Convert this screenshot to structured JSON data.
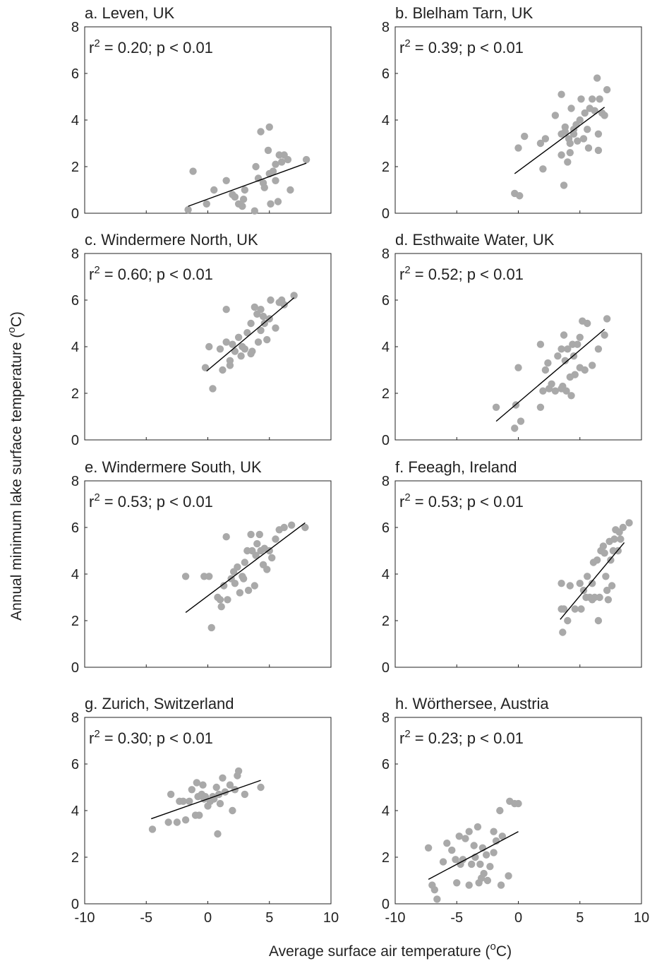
{
  "figure": {
    "xlabel": "Average surface air temperature",
    "xlabel_unit": "C",
    "xlabel_unit_sup": "o",
    "ylabel": "Annual minimum lake surface temperature",
    "ylabel_unit": "C",
    "ylabel_unit_sup": "o"
  },
  "chart_data": [
    {
      "type": "scatter",
      "title": "a. Leven, UK",
      "stat": {
        "r2": "0.20",
        "p": "p < 0.01"
      },
      "xlim": [
        -10,
        10
      ],
      "ylim": [
        0,
        8
      ],
      "xticks": [
        -10,
        -5,
        0,
        5,
        10
      ],
      "yticks": [
        0,
        2,
        4,
        6,
        8
      ],
      "points": [
        [
          -1.6,
          0.15
        ],
        [
          -1.2,
          1.8
        ],
        [
          -0.1,
          0.4
        ],
        [
          0.5,
          1.0
        ],
        [
          1.5,
          1.4
        ],
        [
          2.0,
          0.8
        ],
        [
          2.2,
          0.7
        ],
        [
          2.5,
          0.4
        ],
        [
          2.8,
          0.3
        ],
        [
          3.0,
          1.0
        ],
        [
          2.9,
          0.6
        ],
        [
          3.8,
          0.1
        ],
        [
          3.9,
          2.0
        ],
        [
          4.1,
          1.5
        ],
        [
          4.3,
          3.5
        ],
        [
          4.5,
          1.3
        ],
        [
          4.6,
          1.1
        ],
        [
          4.9,
          2.7
        ],
        [
          5.0,
          3.7
        ],
        [
          5.0,
          1.7
        ],
        [
          5.1,
          0.4
        ],
        [
          5.3,
          1.8
        ],
        [
          5.5,
          2.1
        ],
        [
          5.5,
          1.4
        ],
        [
          5.7,
          0.5
        ],
        [
          5.8,
          2.5
        ],
        [
          6.0,
          2.2
        ],
        [
          6.2,
          2.5
        ],
        [
          6.5,
          2.3
        ],
        [
          6.7,
          1.0
        ],
        [
          8.0,
          2.3
        ]
      ],
      "fit": [
        [
          -1.6,
          0.3
        ],
        [
          8.0,
          2.15
        ]
      ]
    },
    {
      "type": "scatter",
      "title": "b. Blelham Tarn, UK",
      "stat": {
        "r2": "0.39",
        "p": "p < 0.01"
      },
      "xlim": [
        -10,
        10
      ],
      "ylim": [
        0,
        8
      ],
      "xticks": [
        -10,
        -5,
        0,
        5,
        10
      ],
      "yticks": [
        0,
        2,
        4,
        6,
        8
      ],
      "points": [
        [
          -0.3,
          0.85
        ],
        [
          0.1,
          0.75
        ],
        [
          0.0,
          2.8
        ],
        [
          0.5,
          3.3
        ],
        [
          1.8,
          3.0
        ],
        [
          2.0,
          1.9
        ],
        [
          2.2,
          3.2
        ],
        [
          3.0,
          4.2
        ],
        [
          3.5,
          3.4
        ],
        [
          3.5,
          2.5
        ],
        [
          3.5,
          5.1
        ],
        [
          3.7,
          1.2
        ],
        [
          3.8,
          3.5
        ],
        [
          3.8,
          3.7
        ],
        [
          4.0,
          2.2
        ],
        [
          4.1,
          3.2
        ],
        [
          4.2,
          2.6
        ],
        [
          4.2,
          3.0
        ],
        [
          4.3,
          4.5
        ],
        [
          4.5,
          3.4
        ],
        [
          4.5,
          3.6
        ],
        [
          4.7,
          3.8
        ],
        [
          4.8,
          3.1
        ],
        [
          5.0,
          4.0
        ],
        [
          5.1,
          4.9
        ],
        [
          5.3,
          3.2
        ],
        [
          5.4,
          4.3
        ],
        [
          5.6,
          3.6
        ],
        [
          5.7,
          2.8
        ],
        [
          5.8,
          4.5
        ],
        [
          6.0,
          4.9
        ],
        [
          6.2,
          4.4
        ],
        [
          6.4,
          5.8
        ],
        [
          6.5,
          3.4
        ],
        [
          6.5,
          2.7
        ],
        [
          6.6,
          4.9
        ],
        [
          6.8,
          4.3
        ],
        [
          7.0,
          4.2
        ],
        [
          7.2,
          5.3
        ]
      ],
      "fit": [
        [
          -0.3,
          1.7
        ],
        [
          7.0,
          4.55
        ]
      ]
    },
    {
      "type": "scatter",
      "title": "c. Windermere North, UK",
      "stat": {
        "r2": "0.60",
        "p": "p < 0.01"
      },
      "xlim": [
        -10,
        10
      ],
      "ylim": [
        0,
        8
      ],
      "xticks": [
        -10,
        -5,
        0,
        5,
        10
      ],
      "yticks": [
        0,
        2,
        4,
        6,
        8
      ],
      "points": [
        [
          -0.2,
          3.1
        ],
        [
          0.1,
          4.0
        ],
        [
          0.4,
          2.2
        ],
        [
          1.0,
          3.9
        ],
        [
          1.2,
          3.0
        ],
        [
          1.5,
          5.6
        ],
        [
          1.5,
          4.2
        ],
        [
          1.8,
          3.2
        ],
        [
          1.8,
          3.4
        ],
        [
          2.0,
          4.1
        ],
        [
          2.2,
          3.8
        ],
        [
          2.5,
          4.4
        ],
        [
          2.7,
          3.6
        ],
        [
          2.8,
          4.0
        ],
        [
          3.0,
          3.9
        ],
        [
          3.2,
          4.6
        ],
        [
          3.5,
          3.7
        ],
        [
          3.5,
          5.0
        ],
        [
          3.6,
          3.8
        ],
        [
          3.8,
          5.7
        ],
        [
          4.0,
          5.4
        ],
        [
          4.1,
          4.2
        ],
        [
          4.3,
          4.7
        ],
        [
          4.3,
          5.6
        ],
        [
          4.5,
          5.3
        ],
        [
          4.6,
          5.0
        ],
        [
          4.8,
          4.3
        ],
        [
          5.0,
          5.2
        ],
        [
          5.1,
          6.0
        ],
        [
          5.5,
          4.8
        ],
        [
          5.8,
          5.9
        ],
        [
          6.0,
          6.0
        ],
        [
          6.2,
          5.8
        ],
        [
          7.0,
          6.2
        ]
      ],
      "fit": [
        [
          -0.1,
          2.95
        ],
        [
          7.0,
          6.1
        ]
      ]
    },
    {
      "type": "scatter",
      "title": "d. Esthwaite Water, UK",
      "stat": {
        "r2": "0.52",
        "p": "p < 0.01"
      },
      "xlim": [
        -10,
        10
      ],
      "ylim": [
        0,
        8
      ],
      "xticks": [
        -10,
        -5,
        0,
        5,
        10
      ],
      "yticks": [
        0,
        2,
        4,
        6,
        8
      ],
      "points": [
        [
          -1.8,
          1.4
        ],
        [
          -0.3,
          0.5
        ],
        [
          -0.2,
          1.5
        ],
        [
          0.0,
          3.1
        ],
        [
          0.2,
          0.8
        ],
        [
          1.8,
          1.4
        ],
        [
          1.8,
          4.1
        ],
        [
          2.0,
          2.1
        ],
        [
          2.2,
          3.0
        ],
        [
          2.4,
          3.3
        ],
        [
          2.5,
          2.2
        ],
        [
          2.7,
          2.4
        ],
        [
          3.0,
          2.1
        ],
        [
          3.2,
          3.6
        ],
        [
          3.5,
          2.2
        ],
        [
          3.5,
          3.9
        ],
        [
          3.6,
          2.3
        ],
        [
          3.7,
          4.5
        ],
        [
          3.8,
          3.4
        ],
        [
          3.9,
          2.1
        ],
        [
          4.0,
          3.9
        ],
        [
          4.2,
          2.7
        ],
        [
          4.3,
          1.9
        ],
        [
          4.4,
          4.1
        ],
        [
          4.5,
          3.6
        ],
        [
          4.6,
          2.8
        ],
        [
          4.8,
          4.1
        ],
        [
          5.0,
          4.4
        ],
        [
          5.0,
          3.1
        ],
        [
          5.2,
          5.1
        ],
        [
          5.4,
          3.0
        ],
        [
          5.6,
          5.0
        ],
        [
          6.0,
          3.2
        ],
        [
          6.5,
          3.9
        ],
        [
          7.0,
          4.5
        ],
        [
          7.2,
          5.2
        ]
      ],
      "fit": [
        [
          -1.8,
          0.8
        ],
        [
          7.0,
          4.75
        ]
      ]
    },
    {
      "type": "scatter",
      "title": "e. Windermere South, UK",
      "stat": {
        "r2": "0.53",
        "p": "p < 0.01"
      },
      "xlim": [
        -10,
        10
      ],
      "ylim": [
        0,
        8
      ],
      "xticks": [
        -10,
        -5,
        0,
        5,
        10
      ],
      "yticks": [
        0,
        2,
        4,
        6,
        8
      ],
      "points": [
        [
          -1.8,
          3.9
        ],
        [
          -0.3,
          3.9
        ],
        [
          0.1,
          3.9
        ],
        [
          0.3,
          1.7
        ],
        [
          0.8,
          3.0
        ],
        [
          1.0,
          2.9
        ],
        [
          1.1,
          2.6
        ],
        [
          1.3,
          3.5
        ],
        [
          1.5,
          5.6
        ],
        [
          1.6,
          2.9
        ],
        [
          1.9,
          3.8
        ],
        [
          2.1,
          4.1
        ],
        [
          2.2,
          3.6
        ],
        [
          2.4,
          4.3
        ],
        [
          2.6,
          3.2
        ],
        [
          2.8,
          3.9
        ],
        [
          2.9,
          3.8
        ],
        [
          3.0,
          4.5
        ],
        [
          3.2,
          5.0
        ],
        [
          3.3,
          3.3
        ],
        [
          3.5,
          5.7
        ],
        [
          3.6,
          5.0
        ],
        [
          3.8,
          3.5
        ],
        [
          3.9,
          4.8
        ],
        [
          4.0,
          5.3
        ],
        [
          4.2,
          5.7
        ],
        [
          4.3,
          5.0
        ],
        [
          4.5,
          4.4
        ],
        [
          4.6,
          5.1
        ],
        [
          4.8,
          4.2
        ],
        [
          5.0,
          5.0
        ],
        [
          5.2,
          4.7
        ],
        [
          5.5,
          5.5
        ],
        [
          5.8,
          5.9
        ],
        [
          6.2,
          6.0
        ],
        [
          6.8,
          6.1
        ],
        [
          7.9,
          6.0
        ]
      ],
      "fit": [
        [
          -1.8,
          2.35
        ],
        [
          7.9,
          6.2
        ]
      ]
    },
    {
      "type": "scatter",
      "title": "f. Feeagh, Ireland",
      "stat": {
        "r2": "0.53",
        "p": "p < 0.01"
      },
      "xlim": [
        -10,
        10
      ],
      "ylim": [
        0,
        8
      ],
      "xticks": [
        -10,
        -5,
        0,
        5,
        10
      ],
      "yticks": [
        0,
        2,
        4,
        6,
        8
      ],
      "points": [
        [
          3.5,
          3.6
        ],
        [
          3.5,
          2.5
        ],
        [
          3.6,
          1.5
        ],
        [
          3.7,
          2.5
        ],
        [
          4.0,
          2.0
        ],
        [
          4.2,
          3.5
        ],
        [
          4.6,
          2.5
        ],
        [
          5.0,
          3.6
        ],
        [
          5.1,
          2.5
        ],
        [
          5.3,
          3.3
        ],
        [
          5.5,
          3.0
        ],
        [
          5.6,
          3.9
        ],
        [
          5.8,
          3.0
        ],
        [
          6.0,
          2.9
        ],
        [
          6.0,
          3.6
        ],
        [
          6.1,
          4.5
        ],
        [
          6.2,
          3.0
        ],
        [
          6.4,
          4.6
        ],
        [
          6.5,
          2.0
        ],
        [
          6.6,
          3.0
        ],
        [
          6.7,
          5.0
        ],
        [
          6.9,
          5.2
        ],
        [
          7.0,
          4.9
        ],
        [
          7.1,
          3.9
        ],
        [
          7.2,
          3.3
        ],
        [
          7.3,
          2.9
        ],
        [
          7.4,
          5.4
        ],
        [
          7.5,
          4.6
        ],
        [
          7.6,
          3.5
        ],
        [
          7.7,
          5.0
        ],
        [
          7.8,
          5.5
        ],
        [
          7.9,
          5.9
        ],
        [
          8.1,
          5.0
        ],
        [
          8.2,
          5.8
        ],
        [
          8.3,
          5.5
        ],
        [
          8.5,
          6.0
        ],
        [
          9.0,
          6.2
        ]
      ],
      "fit": [
        [
          3.4,
          2.05
        ],
        [
          8.6,
          5.35
        ]
      ]
    },
    {
      "type": "scatter",
      "title": "g. Zurich, Switzerland",
      "stat": {
        "r2": "0.30",
        "p": "p < 0.01"
      },
      "xlim": [
        -10,
        10
      ],
      "ylim": [
        0,
        8
      ],
      "xticks": [
        -10,
        -5,
        0,
        5,
        10
      ],
      "yticks": [
        0,
        2,
        4,
        6,
        8
      ],
      "points": [
        [
          -4.5,
          3.2
        ],
        [
          -3.2,
          3.5
        ],
        [
          -3.0,
          4.7
        ],
        [
          -2.5,
          3.5
        ],
        [
          -2.3,
          4.4
        ],
        [
          -2.0,
          4.4
        ],
        [
          -1.8,
          3.6
        ],
        [
          -1.5,
          4.4
        ],
        [
          -1.3,
          4.9
        ],
        [
          -1.0,
          3.8
        ],
        [
          -0.9,
          5.2
        ],
        [
          -0.8,
          4.6
        ],
        [
          -0.7,
          3.8
        ],
        [
          -0.5,
          4.7
        ],
        [
          -0.4,
          5.1
        ],
        [
          -0.3,
          4.5
        ],
        [
          -0.2,
          4.6
        ],
        [
          0.0,
          4.2
        ],
        [
          0.2,
          4.4
        ],
        [
          0.4,
          4.6
        ],
        [
          0.5,
          4.5
        ],
        [
          0.7,
          5.0
        ],
        [
          0.8,
          3.0
        ],
        [
          0.9,
          4.7
        ],
        [
          1.0,
          4.3
        ],
        [
          1.2,
          5.4
        ],
        [
          1.4,
          4.8
        ],
        [
          1.8,
          5.1
        ],
        [
          2.0,
          4.0
        ],
        [
          2.2,
          4.9
        ],
        [
          2.4,
          5.5
        ],
        [
          2.5,
          5.7
        ],
        [
          3.0,
          4.7
        ],
        [
          4.3,
          5.0
        ]
      ],
      "fit": [
        [
          -4.6,
          3.65
        ],
        [
          4.3,
          5.3
        ]
      ]
    },
    {
      "type": "scatter",
      "title": "h. Wörthersee, Austria",
      "stat": {
        "r2": "0.23",
        "p": "p < 0.01"
      },
      "xlim": [
        -10,
        10
      ],
      "ylim": [
        0,
        8
      ],
      "xticks": [
        -10,
        -5,
        0,
        5,
        10
      ],
      "yticks": [
        0,
        2,
        4,
        6,
        8
      ],
      "points": [
        [
          -7.3,
          2.4
        ],
        [
          -7.0,
          0.8
        ],
        [
          -6.8,
          0.6
        ],
        [
          -6.6,
          0.2
        ],
        [
          -6.1,
          1.8
        ],
        [
          -5.8,
          2.6
        ],
        [
          -5.4,
          2.3
        ],
        [
          -5.1,
          1.9
        ],
        [
          -5.0,
          0.9
        ],
        [
          -4.8,
          2.9
        ],
        [
          -4.7,
          1.7
        ],
        [
          -4.5,
          1.9
        ],
        [
          -4.3,
          2.8
        ],
        [
          -4.0,
          0.8
        ],
        [
          -4.0,
          3.1
        ],
        [
          -3.8,
          1.7
        ],
        [
          -3.6,
          2.5
        ],
        [
          -3.5,
          2.0
        ],
        [
          -3.3,
          3.3
        ],
        [
          -3.2,
          0.9
        ],
        [
          -3.1,
          1.7
        ],
        [
          -3.0,
          1.1
        ],
        [
          -2.9,
          2.4
        ],
        [
          -2.8,
          1.3
        ],
        [
          -2.6,
          2.1
        ],
        [
          -2.5,
          1.0
        ],
        [
          -2.3,
          1.6
        ],
        [
          -2.0,
          3.1
        ],
        [
          -2.0,
          2.2
        ],
        [
          -1.8,
          2.7
        ],
        [
          -1.5,
          4.0
        ],
        [
          -1.4,
          0.8
        ],
        [
          -1.3,
          2.9
        ],
        [
          -0.8,
          1.2
        ],
        [
          -0.7,
          4.4
        ],
        [
          -0.3,
          4.3
        ],
        [
          0.0,
          4.3
        ]
      ],
      "fit": [
        [
          -7.3,
          1.05
        ],
        [
          0.0,
          3.1
        ]
      ]
    }
  ]
}
